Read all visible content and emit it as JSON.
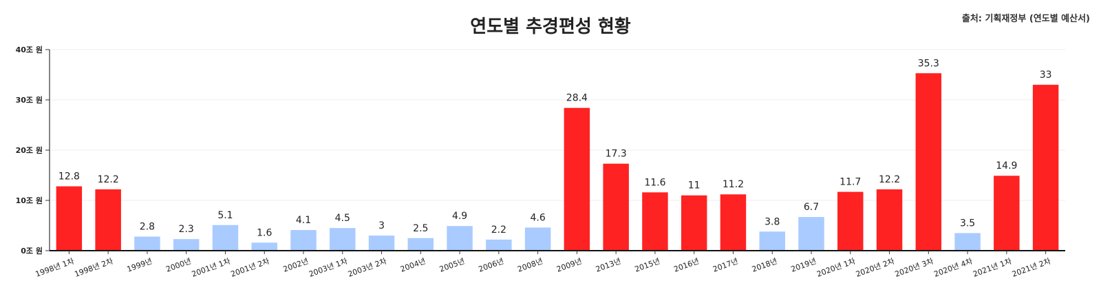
{
  "chart_data": {
    "type": "bar",
    "title": "연도별 추경편성 현황",
    "source": "출처: 기획재정부 (연도별 예산서)",
    "categories": [
      "1998년 1차",
      "1998년 2차",
      "1999년",
      "2000년",
      "2001년 1차",
      "2001년 2차",
      "2002년",
      "2003년 1차",
      "2003년 2차",
      "2004년",
      "2005년",
      "2006년",
      "2008년",
      "2009년",
      "2013년",
      "2015년",
      "2016년",
      "2017년",
      "2018년",
      "2019년",
      "2020년 1차",
      "2020년 2차",
      "2020년 3차",
      "2020년 4차",
      "2021년 1차",
      "2021년 2차"
    ],
    "values": [
      12.8,
      12.2,
      2.8,
      2.3,
      5.1,
      1.6,
      4.1,
      4.5,
      3,
      2.5,
      4.9,
      2.2,
      4.6,
      28.4,
      17.3,
      11.6,
      11,
      11.2,
      3.8,
      6.7,
      11.7,
      12.2,
      35.3,
      3.5,
      14.9,
      33
    ],
    "highlight": [
      true,
      true,
      false,
      false,
      false,
      false,
      false,
      false,
      false,
      false,
      false,
      false,
      false,
      true,
      true,
      true,
      true,
      true,
      false,
      false,
      true,
      true,
      true,
      false,
      true,
      true
    ],
    "yticks": [
      "0조 원",
      "10조 원",
      "20조 원",
      "30조 원",
      "40조 원"
    ],
    "ylim": [
      0,
      40
    ],
    "grid": true,
    "colors": {
      "highlight": "#ff2222",
      "normal": "#a9cbff",
      "grid": "#eeeeee",
      "axis": "#333333"
    }
  }
}
